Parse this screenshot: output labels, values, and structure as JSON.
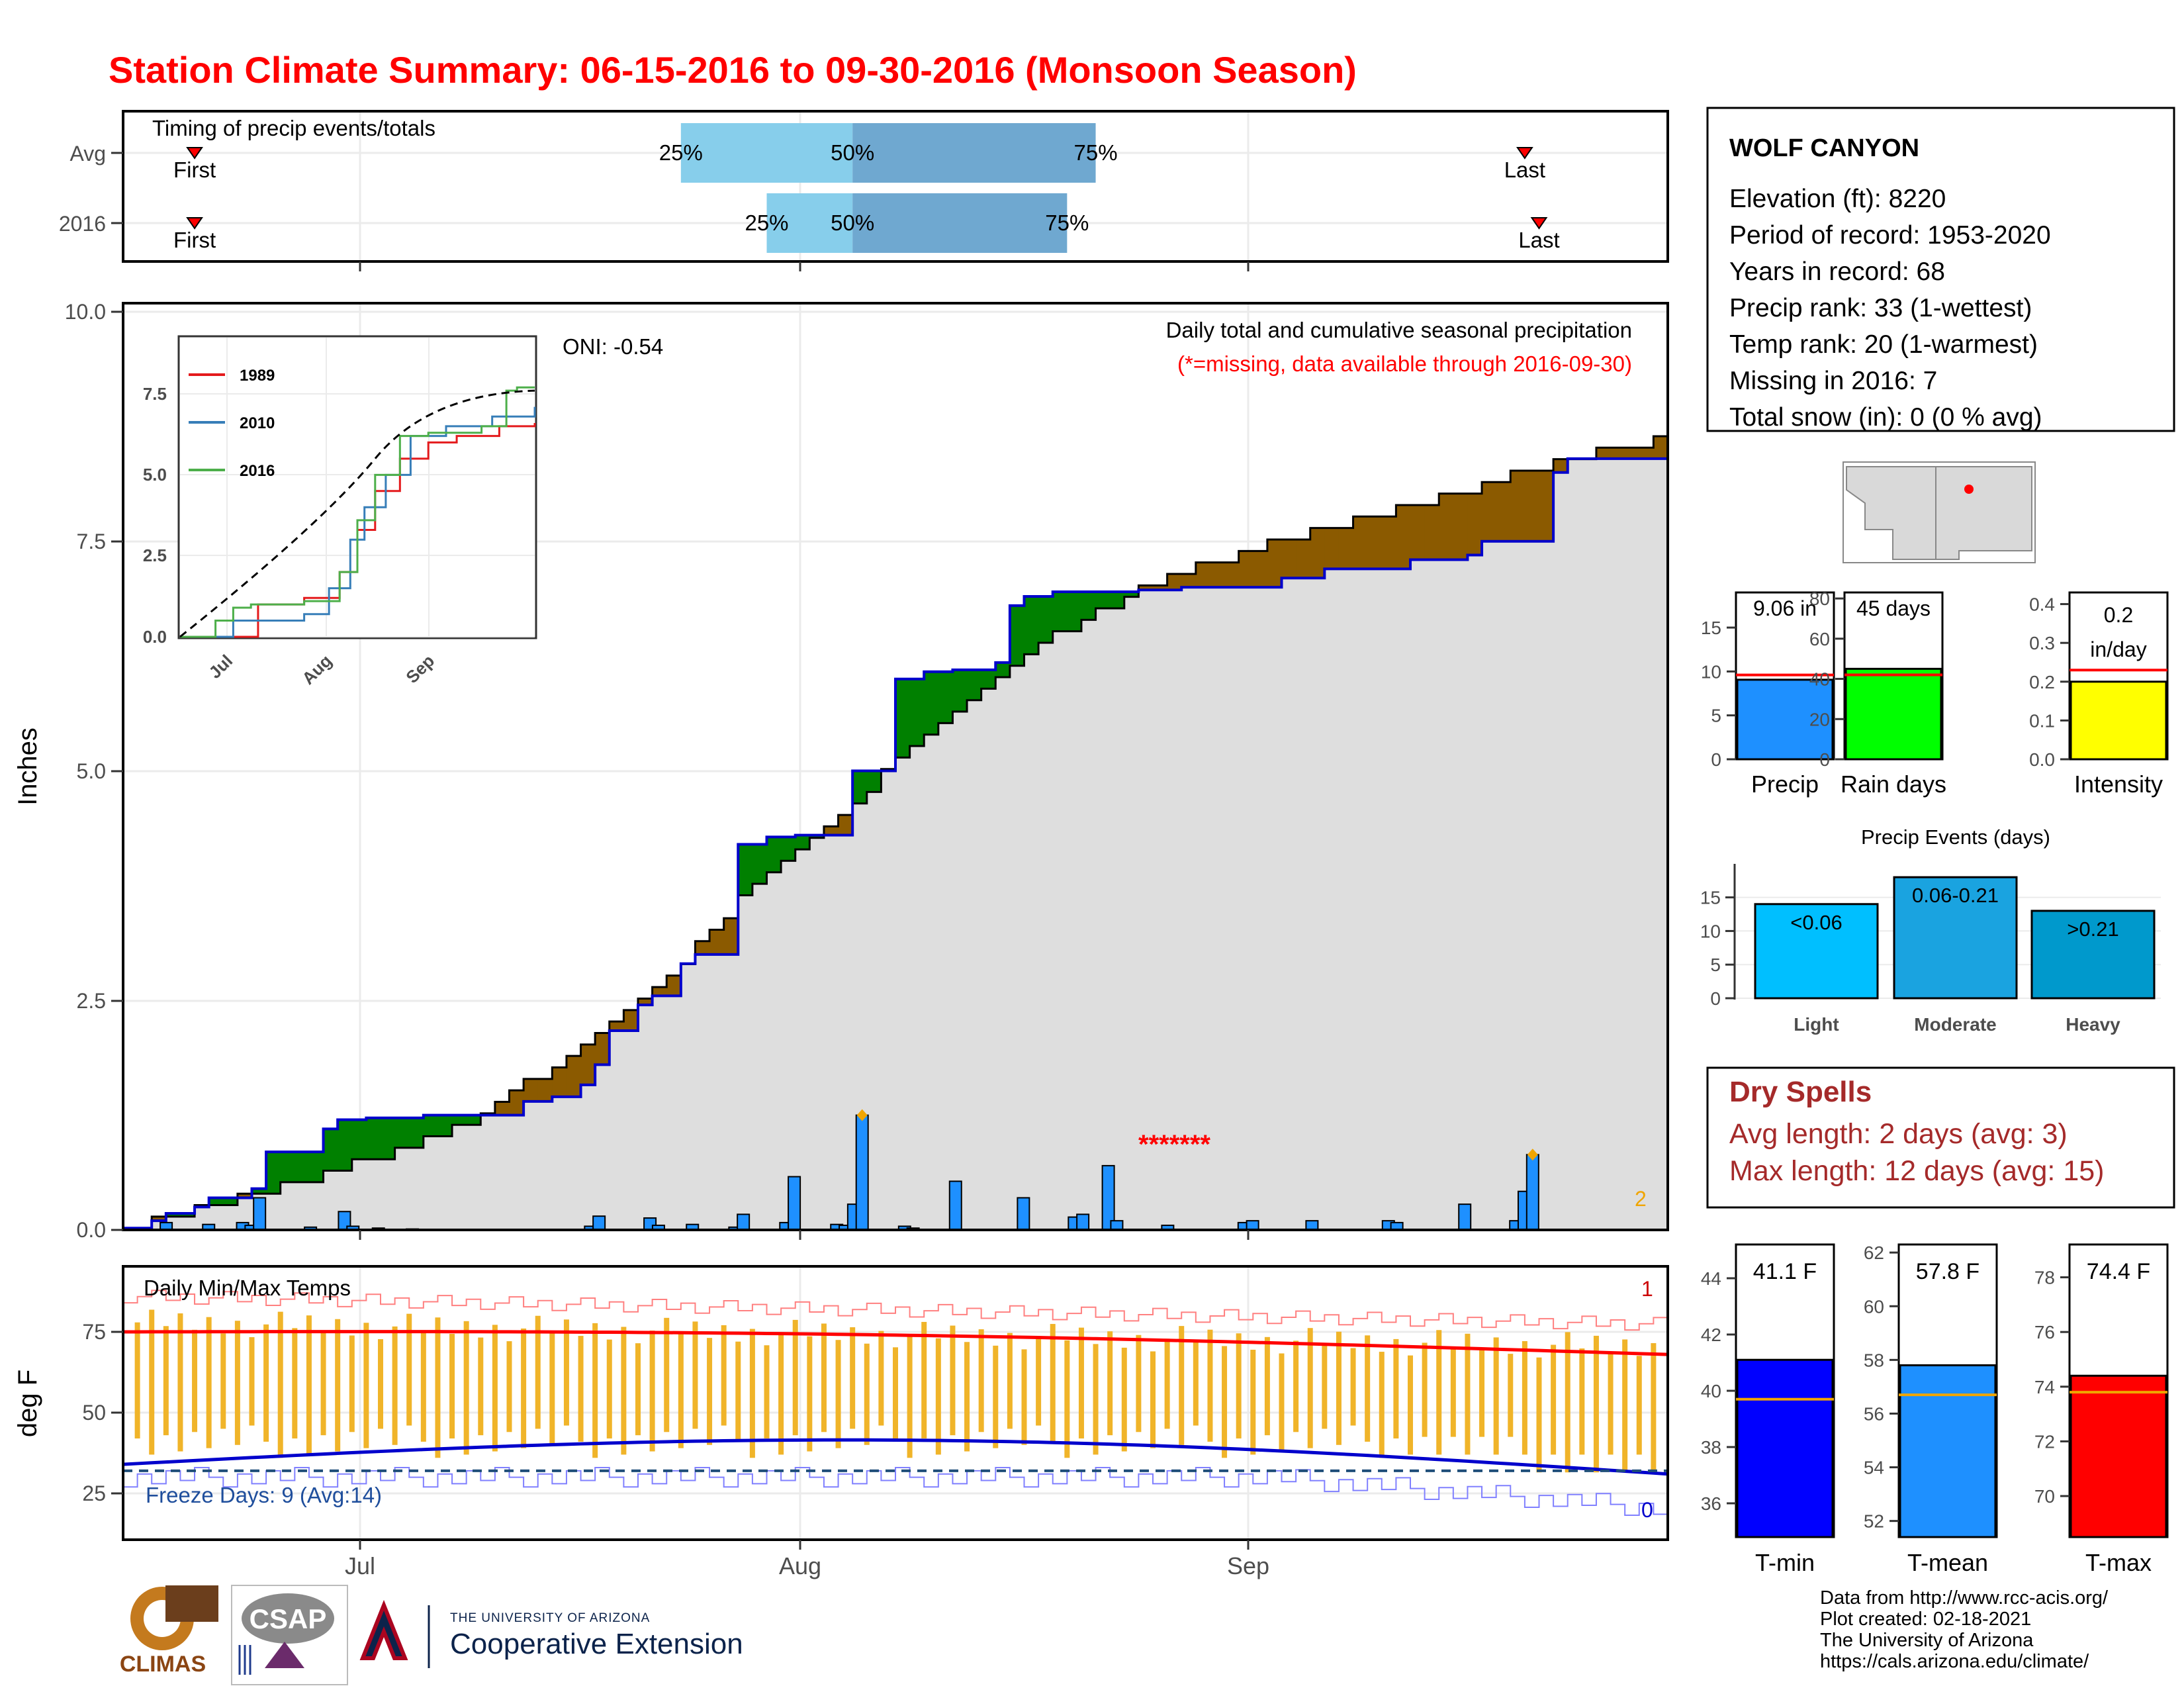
{
  "title": "Station Climate Summary: 06-15-2016 to 09-30-2016 (Monsoon Season)",
  "colors": {
    "title": "#ff0000",
    "cum_fill": "#dedede",
    "excess": "#008000",
    "deficit": "#8b5a00",
    "bar": "#1e90ff",
    "temp_bar": "#f0b429",
    "light": "#00bfff",
    "moderate": "#1aa3e0",
    "heavy": "#0099cc",
    "dry": "#a52a2a"
  },
  "timing": {
    "label": "Timing of precip events/totals",
    "rows": [
      {
        "name": "Avg",
        "p25": "25%",
        "p50": "50%",
        "p75": "75%",
        "first": "First",
        "last": "Last",
        "p25_date": "2016-07-24",
        "p50_date": "2016-08-05",
        "p75_date": "2016-08-22",
        "first_date": "2016-06-20",
        "last_date": "2016-09-21"
      },
      {
        "name": "2016",
        "p25": "25%",
        "p50": "50%",
        "p75": "75%",
        "first": "First",
        "last": "Last",
        "p25_date": "2016-07-30",
        "p50_date": "2016-08-05",
        "p75_date": "2016-08-20",
        "first_date": "2016-06-20",
        "last_date": "2016-09-22"
      }
    ]
  },
  "precip_panel": {
    "caption": "Daily total and cumulative seasonal precipitation",
    "note": "(*=missing, data available through 2016-09-30)",
    "oni": "ONI: -0.54",
    "ylabel": "Inches",
    "yticks": [
      "0.0",
      "2.5",
      "5.0",
      "7.5",
      "10.0"
    ],
    "missing_marks": "*******",
    "corner_count": "2"
  },
  "inset": {
    "yticks": [
      "0.0",
      "2.5",
      "5.0",
      "7.5"
    ],
    "xticks": [
      "Jul",
      "Aug",
      "Sep"
    ],
    "legend": [
      {
        "name": "1989",
        "color": "#e41a1c"
      },
      {
        "name": "2010",
        "color": "#377eb8"
      },
      {
        "name": "2016",
        "color": "#4daf4a"
      }
    ]
  },
  "temp_panel": {
    "caption": "Daily Min/Max Temps",
    "ylabel": "deg F",
    "yticks": [
      "25",
      "50",
      "75"
    ],
    "freeze": "Freeze Days: 9 (Avg:14)",
    "count_top": "1",
    "count_bottom": "0"
  },
  "xaxis": {
    "ticks": [
      "Jul",
      "Aug",
      "Sep"
    ]
  },
  "station": {
    "name": "WOLF CANYON",
    "lines": [
      "Elevation (ft): 8220",
      "Period of record: 1953-2020",
      "Years in record: 68",
      "Precip rank: 33 (1-wettest)",
      "Temp rank: 20 (1-warmest)",
      "Missing in 2016: 7",
      "Total snow (in): 0 (0 % avg)"
    ]
  },
  "summary_bars": [
    {
      "name": "Precip",
      "value_label": "9.06 in",
      "value": 9.06,
      "avg": 9.6,
      "ymax": 19,
      "yticks": [
        "0",
        "5",
        "10",
        "15"
      ],
      "tickvals": [
        0,
        5,
        10,
        15
      ],
      "color": "#1e90ff"
    },
    {
      "name": "Rain days",
      "value_label": "45 days",
      "value": 45,
      "avg": 42,
      "ymax": 83,
      "yticks": [
        "0",
        "20",
        "40",
        "60",
        "80"
      ],
      "tickvals": [
        0,
        20,
        40,
        60,
        80
      ],
      "color": "#00ff00"
    },
    {
      "name": "Intensity",
      "value_label": "0.2 in/day",
      "value": 0.2,
      "avg": 0.23,
      "ymax": 0.43,
      "yticks": [
        "0.0",
        "0.1",
        "0.2",
        "0.3",
        "0.4"
      ],
      "tickvals": [
        0,
        0.1,
        0.2,
        0.3,
        0.4
      ],
      "color": "#ffff00"
    }
  ],
  "events": {
    "title": "Precip Events (days)",
    "yticks": [
      "0",
      "5",
      "10",
      "15"
    ],
    "bars": [
      {
        "name": "Light",
        "label": "<0.06",
        "value": 14,
        "color": "#00bfff"
      },
      {
        "name": "Moderate",
        "label": "0.06-0.21",
        "value": 18,
        "color": "#1aa3e0"
      },
      {
        "name": "Heavy",
        "label": ">0.21",
        "value": 13,
        "color": "#0099cc"
      }
    ]
  },
  "dry_spells": {
    "title": "Dry Spells",
    "lines": [
      "Avg length: 2 days (avg: 3)",
      "Max length: 12 days (avg: 15)"
    ]
  },
  "temp_bars": [
    {
      "name": "T-min",
      "value_label": "41.1 F",
      "value": 41.1,
      "avg": 39.7,
      "ymin": 34.8,
      "ymax": 45.2,
      "yticks": [
        "36",
        "38",
        "40",
        "42",
        "44"
      ],
      "tickvals": [
        36,
        38,
        40,
        42,
        44
      ],
      "color": "#0000ff"
    },
    {
      "name": "T-mean",
      "value_label": "57.8 F",
      "value": 57.8,
      "avg": 56.7,
      "ymin": 51.4,
      "ymax": 62.3,
      "yticks": [
        "52",
        "54",
        "56",
        "58",
        "60",
        "62"
      ],
      "tickvals": [
        52,
        54,
        56,
        58,
        60,
        62
      ],
      "color": "#1e90ff"
    },
    {
      "name": "T-max",
      "value_label": "74.4 F",
      "value": 74.4,
      "avg": 73.8,
      "ymin": 68.5,
      "ymax": 79.2,
      "yticks": [
        "70",
        "72",
        "74",
        "76",
        "78"
      ],
      "tickvals": [
        70,
        72,
        74,
        76,
        78
      ],
      "color": "#ff0000"
    }
  ],
  "footer": [
    "Data from http://www.rcc-acis.org/",
    "Plot created: 02-18-2021",
    "The University of Arizona",
    "https://cals.arizona.edu/climate/"
  ],
  "logos": {
    "climas": "CLIMAS",
    "csap": "CSAP",
    "ua_line1": "THE UNIVERSITY OF ARIZONA",
    "ua_line2": "Cooperative Extension"
  },
  "chart_data": {
    "type": "area",
    "start_date": "2016-06-15",
    "end_date": "2016-09-30",
    "ylim": [
      0,
      10
    ],
    "cumulative_2016": [
      [
        0,
        0.02
      ],
      [
        3,
        0.1
      ],
      [
        5,
        0.18
      ],
      [
        9,
        0.25
      ],
      [
        10,
        0.35
      ],
      [
        15,
        0.45
      ],
      [
        17,
        0.85
      ],
      [
        23,
        1.1
      ],
      [
        26,
        1.2
      ],
      [
        29,
        1.22
      ],
      [
        36,
        1.25
      ],
      [
        47,
        1.35
      ],
      [
        48,
        1.4
      ],
      [
        50,
        1.45
      ],
      [
        54,
        1.58
      ],
      [
        55,
        1.63
      ],
      [
        56,
        1.8
      ],
      [
        57,
        2.17
      ],
      [
        60,
        2.45
      ],
      [
        62,
        2.55
      ],
      [
        66,
        2.9
      ],
      [
        67,
        3.0
      ],
      [
        73,
        4.2
      ],
      [
        76,
        4.28
      ],
      [
        80,
        4.3
      ],
      [
        86,
        5.0
      ],
      [
        91,
        6.0
      ],
      [
        94,
        6.08
      ],
      [
        97,
        6.1
      ],
      [
        102,
        6.18
      ],
      [
        104,
        6.8
      ],
      [
        106,
        6.9
      ],
      [
        110,
        6.95
      ],
      [
        120,
        6.97
      ],
      [
        124,
        7.0
      ],
      [
        136,
        7.1
      ],
      [
        142,
        7.2
      ],
      [
        152,
        7.3
      ],
      [
        158,
        7.35
      ],
      [
        160,
        7.5
      ],
      [
        168,
        8.25
      ],
      [
        170,
        8.4
      ],
      [
        182,
        8.5
      ]
    ],
    "cumulative_avg": [
      [
        0,
        0.02
      ],
      [
        20,
        0.5
      ],
      [
        40,
        1.1
      ],
      [
        60,
        2.4
      ],
      [
        75,
        3.8
      ],
      [
        90,
        5.0
      ],
      [
        105,
        6.2
      ],
      [
        120,
        7.0
      ],
      [
        140,
        7.6
      ],
      [
        160,
        8.1
      ],
      [
        175,
        8.5
      ],
      [
        182,
        8.6
      ]
    ],
    "daily_precip": [
      [
        5,
        0.08
      ],
      [
        10,
        0.06
      ],
      [
        14,
        0.08
      ],
      [
        15,
        0.05
      ],
      [
        16,
        0.35
      ],
      [
        22,
        0.03
      ],
      [
        26,
        0.2
      ],
      [
        27,
        0.04
      ],
      [
        30,
        0.02
      ],
      [
        34,
        0.01
      ],
      [
        55,
        0.04
      ],
      [
        56,
        0.15
      ],
      [
        62,
        0.13
      ],
      [
        63,
        0.05
      ],
      [
        67,
        0.06
      ],
      [
        72,
        0.03
      ],
      [
        73,
        0.17
      ],
      [
        78,
        0.08
      ],
      [
        79,
        0.58
      ],
      [
        84,
        0.06
      ],
      [
        85,
        0.05
      ],
      [
        86,
        0.28
      ],
      [
        87,
        1.25
      ],
      [
        92,
        0.04
      ],
      [
        93,
        0.02
      ],
      [
        98,
        0.53
      ],
      [
        106,
        0.35
      ],
      [
        112,
        0.14
      ],
      [
        113,
        0.17
      ],
      [
        116,
        0.7
      ],
      [
        117,
        0.1
      ],
      [
        123,
        0.05
      ],
      [
        132,
        0.08
      ],
      [
        133,
        0.1
      ],
      [
        140,
        0.1
      ],
      [
        149,
        0.1
      ],
      [
        150,
        0.08
      ],
      [
        158,
        0.28
      ],
      [
        164,
        0.1
      ],
      [
        165,
        0.42
      ],
      [
        166,
        0.82
      ]
    ],
    "peak_marks": [
      [
        87,
        1.25
      ],
      [
        166,
        0.82
      ]
    ],
    "temp_max_avg_start": 75,
    "temp_max_avg_end": 68,
    "temp_min_avg_start": 34,
    "temp_min_avg_end": 31,
    "freeze_line": 32
  }
}
